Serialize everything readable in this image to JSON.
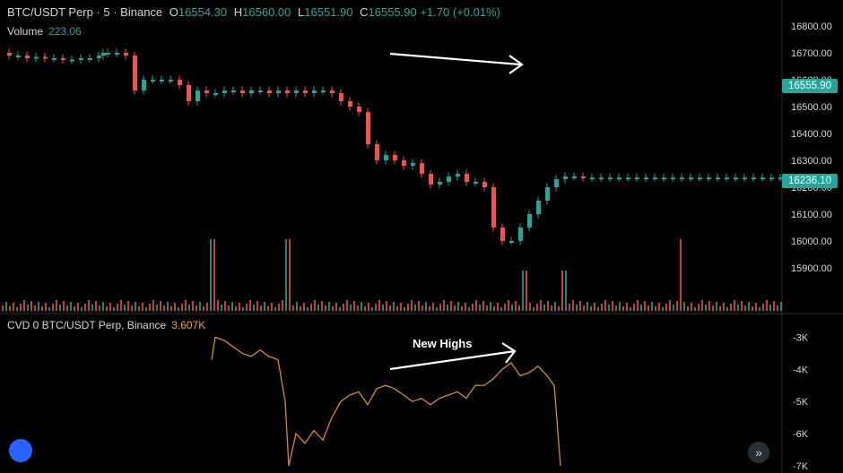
{
  "header": {
    "symbol": "BTC/USDT Perp · 5 · Binance",
    "open_key": "O",
    "open": "16554.30",
    "high_key": "H",
    "high": "16560.00",
    "low_key": "L",
    "low": "16551.90",
    "close_key": "C",
    "close": "16555.90",
    "change": "+1.70 (+0.01%)"
  },
  "volume_legend": {
    "label": "Volume",
    "value": "223.06"
  },
  "cvd_legend": {
    "label": "CVD 0 BTC/USDT Perp, Binance",
    "value": "3.607K"
  },
  "price_labels": {
    "last": "16555.90",
    "current": "16236.10"
  },
  "annotation": {
    "text": "New Highs"
  },
  "colors": {
    "up": "#26a69a",
    "down": "#ef5350",
    "cvd": "#d98a2b",
    "grid": "#1e222d",
    "arrow": "#ffffff"
  },
  "icons": {
    "logo": "tradingview-logo-icon",
    "nav": "double-chevron-right-icon"
  },
  "chart_data": [
    {
      "type": "line",
      "description": "BTC/USDT perpetual 5m price (candlestick approximated by close line, plus volume)",
      "y_ticks": [
        "16800.00",
        "16700.00",
        "16600.00",
        "16500.00",
        "16400.00",
        "16300.00",
        "16200.00",
        "16100.00",
        "16000.00",
        "15900.00"
      ],
      "ylim": [
        15850,
        16850
      ],
      "x": [
        0,
        10,
        20,
        30,
        40,
        50,
        60,
        70,
        80,
        90,
        100,
        110,
        115,
        120,
        130,
        140,
        150,
        160,
        170,
        180,
        190,
        200,
        210,
        220,
        230,
        240,
        250,
        260,
        270,
        280,
        290,
        300,
        310,
        320,
        330,
        340,
        350,
        360,
        370,
        380,
        390,
        400,
        410,
        420,
        430,
        440,
        450,
        460,
        470,
        480,
        490,
        500,
        510,
        520,
        530,
        540,
        550,
        560,
        570,
        580,
        590,
        600,
        610,
        620,
        630,
        640,
        650,
        660,
        670,
        680,
        690,
        700,
        710,
        720,
        730,
        740,
        750,
        760,
        770,
        780,
        790,
        800,
        810,
        820,
        830,
        840,
        850,
        860,
        870,
        880
      ],
      "close": [
        16700,
        16690,
        16690,
        16680,
        16685,
        16680,
        16680,
        16675,
        16675,
        16680,
        16680,
        16690,
        16700,
        16700,
        16700,
        16690,
        16560,
        16600,
        16600,
        16600,
        16600,
        16580,
        16520,
        16560,
        16550,
        16550,
        16560,
        16560,
        16550,
        16560,
        16560,
        16550,
        16560,
        16550,
        16560,
        16550,
        16560,
        16560,
        16550,
        16520,
        16500,
        16480,
        16360,
        16300,
        16320,
        16300,
        16280,
        16290,
        16250,
        16210,
        16220,
        16240,
        16250,
        16220,
        16220,
        16200,
        16050,
        16000,
        16000,
        16050,
        16100,
        16150,
        16200,
        16230,
        16240,
        16240,
        16236,
        16236,
        16236,
        16236,
        16236,
        16236,
        16236,
        16236,
        16236,
        16236,
        16236,
        16236,
        16236,
        16236,
        16236,
        16236,
        16236,
        16236,
        16236,
        16236,
        16236,
        16236,
        16236,
        16236
      ],
      "volume_spikes": [
        {
          "x": 236,
          "v": "high"
        },
        {
          "x": 320,
          "v": "high"
        },
        {
          "x": 584,
          "v": "mid"
        },
        {
          "x": 628,
          "v": "mid"
        },
        {
          "x": 758,
          "v": "high"
        }
      ]
    },
    {
      "type": "line",
      "name": "CVD",
      "y_ticks": [
        "-3K",
        "-4K",
        "-5K",
        "-6K",
        "-7K"
      ],
      "ylim": [
        -7000,
        -2600
      ],
      "x": [
        236,
        240,
        250,
        260,
        270,
        280,
        290,
        300,
        310,
        318,
        322,
        330,
        340,
        350,
        360,
        370,
        380,
        390,
        400,
        410,
        420,
        430,
        440,
        450,
        460,
        470,
        480,
        490,
        500,
        510,
        520,
        530,
        540,
        550,
        560,
        570,
        575,
        580,
        590,
        600,
        610,
        618,
        625
      ],
      "values": [
        -3700,
        -3000,
        -3100,
        -3300,
        -3500,
        -3600,
        -3400,
        -3600,
        -3700,
        -5000,
        -7000,
        -6000,
        -6300,
        -5900,
        -6200,
        -5500,
        -5000,
        -4800,
        -4700,
        -5100,
        -4600,
        -4500,
        -4600,
        -4800,
        -5000,
        -4900,
        -5100,
        -4900,
        -4800,
        -4700,
        -4900,
        -4500,
        -4500,
        -4300,
        -4000,
        -3800,
        -4000,
        -4200,
        -4100,
        -3900,
        -4200,
        -4500,
        -7000
      ]
    }
  ]
}
